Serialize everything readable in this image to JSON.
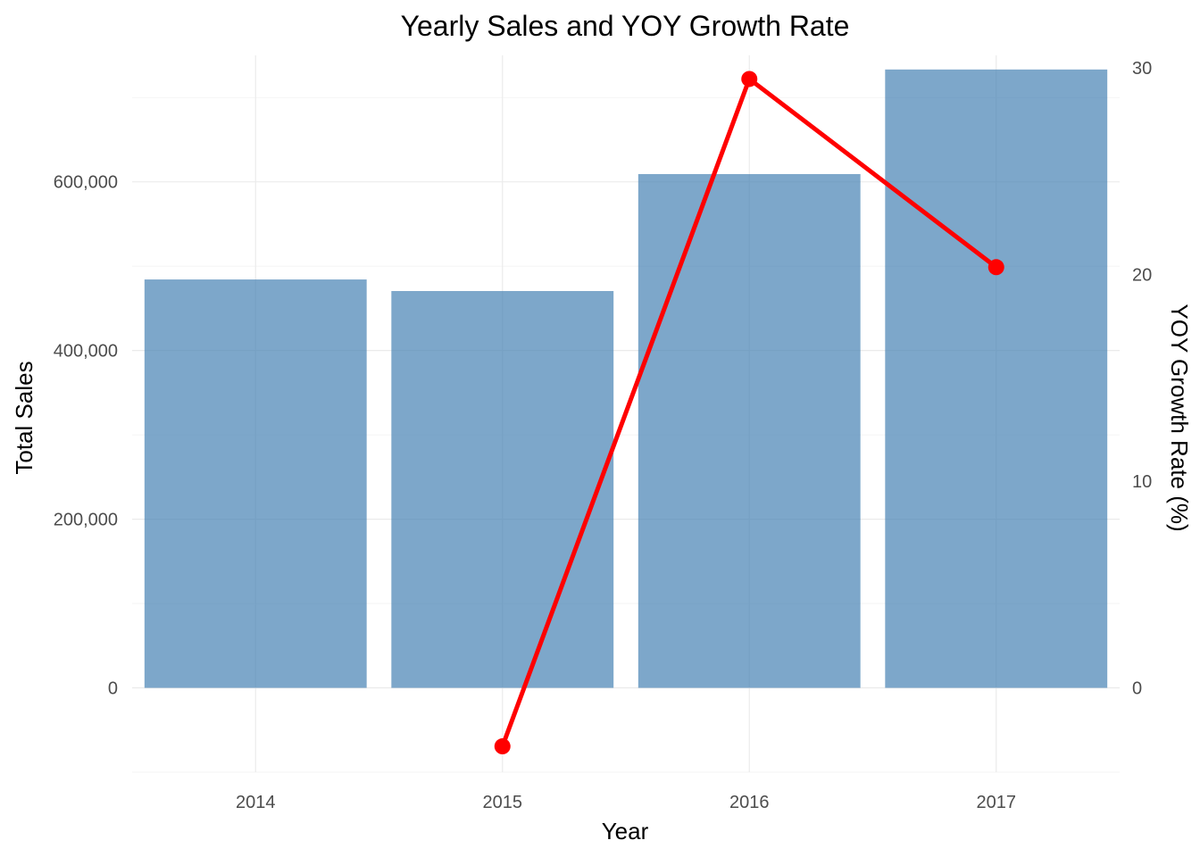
{
  "chart_data": {
    "type": "bar+line",
    "title": "Yearly Sales and YOY Growth Rate",
    "xlabel": "Year",
    "ylabel_left": "Total Sales",
    "ylabel_right": "YOY Growth Rate (%)",
    "categories": [
      "2014",
      "2015",
      "2016",
      "2017"
    ],
    "ylim_left": [
      -100000,
      750000
    ],
    "left_ticks": [
      0,
      200000,
      400000,
      600000
    ],
    "left_tick_labels": [
      "0",
      "200,000",
      "400,000",
      "600,000"
    ],
    "right_ticks": [
      0,
      10,
      20,
      30
    ],
    "right_tick_labels": [
      "0",
      "10",
      "20",
      "30"
    ],
    "right_scale_factor": 24500,
    "grid": true,
    "series": [
      {
        "kind": "bar",
        "axis": "left",
        "values": [
          484247,
          470533,
          609206,
          733215
        ],
        "color": "#4682B4",
        "opacity": 0.7
      },
      {
        "kind": "line",
        "axis": "right",
        "values": [
          null,
          -2.83,
          29.47,
          20.36
        ],
        "color": "#FF0000"
      }
    ]
  }
}
